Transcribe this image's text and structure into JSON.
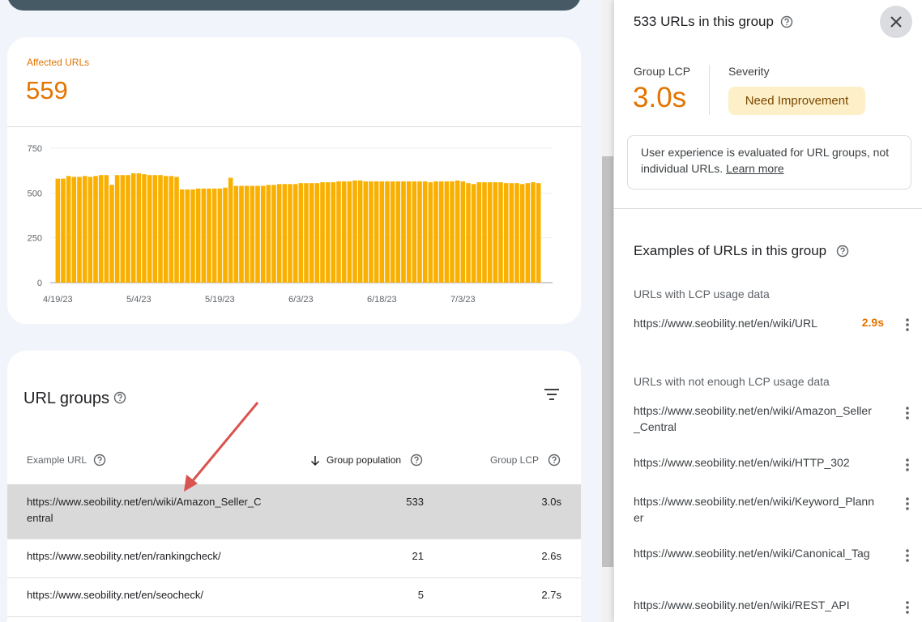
{
  "summary_card": {
    "label": "Affected URLs",
    "value": 559
  },
  "chart_data": {
    "type": "bar",
    "color": "#f9b000",
    "grid": true,
    "ylim": [
      0,
      750
    ],
    "yticks": [
      0,
      250,
      500,
      750
    ],
    "categories": [
      "4/19/23",
      null,
      null,
      null,
      null,
      null,
      null,
      null,
      null,
      null,
      null,
      null,
      null,
      null,
      null,
      "5/4/23",
      null,
      null,
      null,
      null,
      null,
      null,
      null,
      null,
      null,
      null,
      null,
      null,
      null,
      null,
      "5/19/23",
      null,
      null,
      null,
      null,
      null,
      null,
      null,
      null,
      null,
      null,
      null,
      null,
      null,
      null,
      "6/3/23",
      null,
      null,
      null,
      null,
      null,
      null,
      null,
      null,
      null,
      null,
      null,
      null,
      null,
      null,
      "6/18/23",
      null,
      null,
      null,
      null,
      null,
      null,
      null,
      null,
      null,
      null,
      null,
      null,
      null,
      null,
      "7/3/23",
      null,
      null,
      null,
      null,
      null,
      null,
      null,
      null,
      null,
      null,
      null,
      null,
      null,
      null
    ],
    "values": [
      580,
      580,
      595,
      590,
      590,
      595,
      590,
      595,
      600,
      600,
      545,
      600,
      600,
      600,
      610,
      610,
      605,
      600,
      600,
      600,
      595,
      595,
      590,
      520,
      520,
      520,
      525,
      525,
      525,
      525,
      525,
      530,
      585,
      540,
      540,
      540,
      540,
      540,
      540,
      545,
      545,
      550,
      550,
      550,
      550,
      555,
      555,
      555,
      555,
      560,
      560,
      560,
      565,
      565,
      565,
      570,
      570,
      565,
      565,
      565,
      565,
      565,
      565,
      565,
      565,
      565,
      565,
      565,
      565,
      560,
      565,
      565,
      565,
      565,
      570,
      565,
      555,
      550,
      560,
      560,
      560,
      560,
      560,
      555,
      555,
      555,
      550,
      555,
      560,
      555
    ]
  },
  "url_groups": {
    "title": "URL groups",
    "columns": [
      "Example URL",
      "Group population",
      "Group LCP"
    ],
    "rows": [
      [
        "https://www.seobility.net/en/wiki/Amazon_Seller_Central",
        533,
        "3.0s"
      ],
      [
        "https://www.seobility.net/en/rankingcheck/",
        21,
        "2.6s"
      ],
      [
        "https://www.seobility.net/en/seocheck/",
        5,
        "2.7s"
      ]
    ]
  },
  "side_panel": {
    "title": "533 URLs in this group",
    "lcp_label": "Group LCP",
    "lcp_value": "3.0s",
    "severity_label": "Severity",
    "severity_value": "Need Improvement",
    "info_text": "User experience is evaluated for URL groups, not individual URLs.",
    "info_link": "Learn more",
    "examples_title": "Examples of URLs in this group",
    "with_data_title": "URLs with LCP usage data",
    "with_data": [
      {
        "url": "https://www.seobility.net/en/wiki/URL",
        "lcp": "2.9s"
      }
    ],
    "without_data_title": "URLs with not enough LCP usage data",
    "without_data": [
      "https://www.seobility.net/en/wiki/Amazon_Seller_Central",
      "https://www.seobility.net/en/wiki/HTTP_302",
      "https://www.seobility.net/en/wiki/Keyword_Planner",
      "https://www.seobility.net/en/wiki/Canonical_Tag",
      "https://www.seobility.net/en/wiki/REST_API"
    ]
  }
}
